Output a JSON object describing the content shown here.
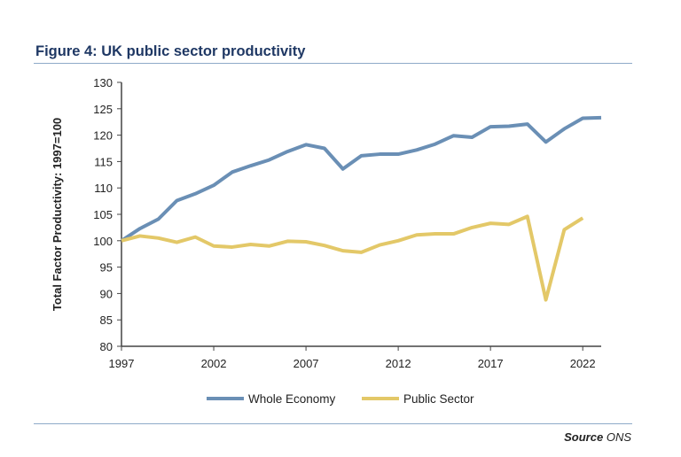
{
  "title": "Figure 4: UK public sector productivity",
  "source_label": "Source",
  "source_value": "ONS",
  "chart_data": {
    "type": "line",
    "title": "Figure 4: UK public sector productivity",
    "xlabel": "",
    "ylabel": "Total Factor Productivity: 1997=100",
    "xlim": [
      1997,
      2023
    ],
    "ylim": [
      80,
      130
    ],
    "x_ticks": [
      1997,
      2002,
      2007,
      2012,
      2017,
      2022
    ],
    "y_ticks": [
      80,
      85,
      90,
      95,
      100,
      105,
      110,
      115,
      120,
      125,
      130
    ],
    "grid": false,
    "legend": "bottom",
    "series": [
      {
        "name": "Whole Economy",
        "color": "#6a8fb5",
        "x": [
          1997,
          1998,
          1999,
          2000,
          2001,
          2002,
          2003,
          2004,
          2005,
          2006,
          2007,
          2008,
          2009,
          2010,
          2011,
          2012,
          2013,
          2014,
          2015,
          2016,
          2017,
          2018,
          2019,
          2020,
          2021,
          2022,
          2023
        ],
        "values": [
          100,
          102.3,
          104.1,
          107.6,
          108.9,
          110.5,
          113,
          114.2,
          115.3,
          116.9,
          118.2,
          117.5,
          113.6,
          116.1,
          116.4,
          116.4,
          117.2,
          118.3,
          119.9,
          119.6,
          121.6,
          121.7,
          122.1,
          118.7,
          121.2,
          123.2,
          123.3
        ]
      },
      {
        "name": "Public Sector",
        "color": "#e3c868",
        "x": [
          1997,
          1998,
          1999,
          2000,
          2001,
          2002,
          2003,
          2004,
          2005,
          2006,
          2007,
          2008,
          2009,
          2010,
          2011,
          2012,
          2013,
          2014,
          2015,
          2016,
          2017,
          2018,
          2019,
          2020,
          2021,
          2022
        ],
        "values": [
          100,
          100.9,
          100.5,
          99.7,
          100.7,
          99.0,
          98.8,
          99.3,
          99.0,
          99.9,
          99.8,
          99.1,
          98.1,
          97.8,
          99.2,
          100.0,
          101.1,
          101.3,
          101.3,
          102.5,
          103.3,
          103.1,
          104.6,
          88.8,
          102.1,
          104.3
        ]
      }
    ]
  }
}
